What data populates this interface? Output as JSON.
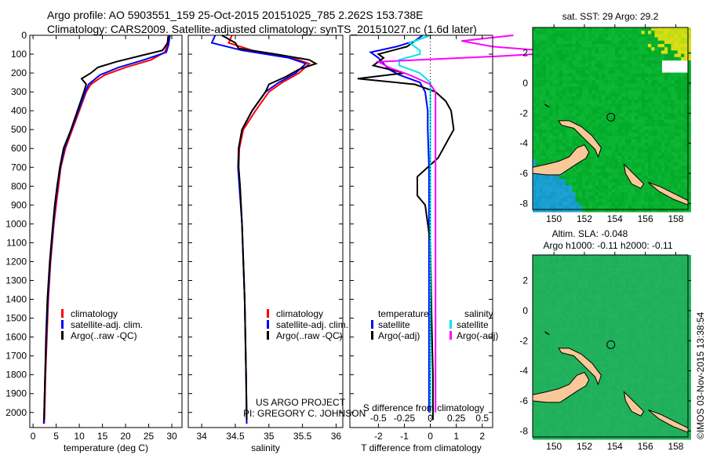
{
  "title_line1": "Argo profile: AO 5903551_159 25-Oct-2015 20151025_785 2.262S 153.738E",
  "title_line2": "Climatology: CARS2009. Satellite-adjusted climatology: synTS_20151027.nc (1.6d later)",
  "stamp": "©IMOS 03-Nov-2015 13:38:54",
  "colors": {
    "climatology": "#ff0000",
    "satellite": "#0000ff",
    "argo": "#000000",
    "sal_satellite": "#00e5ee",
    "sal_argo": "#ff00ff",
    "land": "#f8c898"
  },
  "chart_data": [
    {
      "type": "line",
      "id": "temperature",
      "xlabel": "temperature (deg C)",
      "ylabel": "",
      "xlim": [
        -0.7,
        32.2
      ],
      "ylim": [
        2080,
        0
      ],
      "xticks": [
        "0",
        "5",
        "10",
        "15",
        "20",
        "25",
        "30"
      ],
      "xtick_values": [
        0,
        5,
        10,
        15,
        20,
        25,
        30
      ],
      "yticks": [
        "0",
        "100",
        "200",
        "300",
        "400",
        "500",
        "600",
        "700",
        "800",
        "900",
        "1000",
        "1100",
        "1200",
        "1300",
        "1400",
        "1500",
        "1600",
        "1700",
        "1800",
        "1900",
        "2000"
      ],
      "legend": [
        "climatology",
        "satellite-adj. clim.",
        "Argo(..raw -QC)"
      ],
      "series": [
        {
          "name": "climatology",
          "color": "#ff0000",
          "depth": [
            0,
            50,
            90,
            130,
            170,
            210,
            260,
            300,
            400,
            500,
            600,
            700,
            800,
            900,
            1000,
            1200,
            1400,
            1600,
            1800,
            2000,
            2060
          ],
          "values": [
            29.3,
            29.0,
            28.5,
            25.5,
            20,
            15.5,
            12.5,
            11.5,
            10,
            8.5,
            7,
            6,
            5.5,
            5,
            4.5,
            3.8,
            3.3,
            3,
            2.7,
            2.5,
            2.4
          ]
        },
        {
          "name": "satellite-adj. clim.",
          "color": "#0000ff",
          "depth": [
            0,
            50,
            90,
            130,
            170,
            210,
            260,
            300,
            400,
            500,
            600,
            700,
            800,
            900,
            1000,
            1200,
            1400,
            1600,
            1800,
            2000,
            2060
          ],
          "values": [
            29.6,
            29.3,
            28.8,
            24,
            18.5,
            14.5,
            12,
            11.3,
            9.8,
            8.3,
            6.8,
            5.9,
            5.3,
            4.8,
            4.4,
            3.7,
            3.2,
            2.9,
            2.6,
            2.4,
            2.3
          ]
        },
        {
          "name": "Argo(..raw -QC)",
          "color": "#000000",
          "depth": [
            5,
            40,
            80,
            110,
            140,
            170,
            200,
            230,
            260,
            300,
            400,
            500,
            600,
            700,
            800,
            900,
            1000,
            1200,
            1400,
            1600,
            1800,
            2000,
            2040
          ],
          "values": [
            29.2,
            29.1,
            28,
            23,
            18,
            14,
            12.5,
            10.5,
            11.5,
            11,
            9.6,
            8.2,
            6.6,
            5.8,
            5.2,
            4.7,
            4.3,
            3.6,
            3.1,
            2.8,
            2.6,
            2.4,
            2.4
          ]
        }
      ]
    },
    {
      "type": "line",
      "id": "salinity",
      "xlabel": "salinity",
      "ylabel": "",
      "xlim": [
        33.8,
        36.1
      ],
      "ylim": [
        2080,
        0
      ],
      "xticks": [
        "34",
        "34.5",
        "35",
        "35.5",
        "36"
      ],
      "xtick_values": [
        34,
        34.5,
        35,
        35.5,
        36
      ],
      "legend": [
        "climatology",
        "satellite-adj. clim.",
        "Argo(..raw -QC)"
      ],
      "annotation": [
        "US ARGO PROJECT",
        "PI: GREGORY C. JOHNSON"
      ],
      "series": [
        {
          "name": "climatology",
          "color": "#ff0000",
          "depth": [
            0,
            40,
            80,
            120,
            150,
            200,
            250,
            300,
            400,
            500,
            600,
            700,
            800,
            1000,
            1400,
            1800,
            2060
          ],
          "values": [
            34.45,
            34.4,
            34.75,
            35.35,
            35.6,
            35.45,
            35.2,
            35.0,
            34.8,
            34.62,
            34.56,
            34.55,
            34.57,
            34.6,
            34.64,
            34.66,
            34.67
          ]
        },
        {
          "name": "satellite-adj. clim.",
          "color": "#0000ff",
          "depth": [
            0,
            40,
            80,
            120,
            150,
            200,
            250,
            300,
            400,
            500,
            600,
            700,
            800,
            1000,
            1400,
            1800,
            2060
          ],
          "values": [
            34.2,
            34.15,
            34.6,
            35.3,
            35.55,
            35.4,
            35.15,
            34.95,
            34.75,
            34.6,
            34.55,
            34.54,
            34.56,
            34.6,
            34.64,
            34.66,
            34.67
          ]
        },
        {
          "name": "Argo(..raw -QC)",
          "color": "#000000",
          "depth": [
            0,
            40,
            70,
            100,
            130,
            150,
            180,
            220,
            260,
            300,
            400,
            500,
            600,
            700,
            800,
            1000,
            1400,
            1800,
            2040
          ],
          "values": [
            34.3,
            34.5,
            34.55,
            35.1,
            35.6,
            35.7,
            35.45,
            35.25,
            35.0,
            34.95,
            34.75,
            34.6,
            34.55,
            34.55,
            34.57,
            34.6,
            34.64,
            34.66,
            34.67
          ]
        }
      ]
    },
    {
      "type": "line",
      "id": "difference",
      "xlabel": "T difference from climatology",
      "x2label": "S difference from climatology",
      "xlim": [
        -3.1,
        2.4
      ],
      "ylim": [
        2080,
        0
      ],
      "xticks": [
        "-2",
        "-1",
        "0",
        "1",
        "2"
      ],
      "xtick_values": [
        -2,
        -1,
        0,
        1,
        2
      ],
      "x2ticks": [
        "-0.5",
        "-0.25",
        "0",
        "0.25",
        "0.5"
      ],
      "x2tick_values": [
        -0.5,
        -0.25,
        0,
        0.25,
        0.5
      ],
      "legend_t": [
        "temperature",
        "satellite",
        "Argo(-adj)"
      ],
      "legend_s": [
        "salinity",
        "satellite",
        "Argo(-adj)"
      ],
      "series": [
        {
          "name": "T satellite",
          "color": "#0000ff",
          "depth": [
            0,
            30,
            60,
            90,
            120,
            150,
            180,
            210,
            250,
            300,
            400,
            500,
            700,
            1000,
            1500,
            2000
          ],
          "values": [
            -0.3,
            -0.6,
            -1.3,
            -2.3,
            -2.0,
            -1.8,
            -1.6,
            -1.2,
            -0.4,
            -0.2,
            -0.1,
            -0.1,
            -0.05,
            -0.05,
            -0.05,
            -0.05
          ]
        },
        {
          "name": "T Argo(-adj)",
          "color": "#000000",
          "depth": [
            5,
            30,
            60,
            100,
            120,
            160,
            200,
            230,
            260,
            300,
            350,
            400,
            500,
            550,
            650,
            750,
            850,
            900,
            1000,
            1100,
            1500,
            1800,
            2040
          ],
          "values": [
            -0.1,
            -0.6,
            -0.9,
            -2.0,
            -1.8,
            -2.2,
            -1.0,
            -2.8,
            -0.6,
            0.2,
            0.6,
            0.8,
            0.9,
            0.7,
            0.3,
            -0.5,
            -0.5,
            -0.2,
            -0.1,
            0,
            0.05,
            0.1,
            0.1
          ]
        },
        {
          "name": "S satellite",
          "color": "#00e5ee",
          "depth": [
            0,
            40,
            80,
            100,
            130,
            160,
            200,
            250,
            300,
            500,
            1000,
            2000
          ],
          "values": [
            0.0,
            -0.2,
            -0.1,
            -0.1,
            -0.3,
            -0.3,
            -0.1,
            0.0,
            0,
            0,
            0,
            0
          ]
        },
        {
          "name": "S Argo(-adj)",
          "color": "#ff00ff",
          "depth": [
            0,
            30,
            60,
            90,
            110,
            140,
            170,
            210,
            260,
            300,
            500,
            1000,
            2000
          ],
          "values": [
            0.8,
            0.3,
            0.6,
            1.3,
            0.7,
            -0.5,
            -0.4,
            -0.2,
            0,
            0.05,
            0.05,
            0.05,
            0.05
          ]
        }
      ]
    },
    {
      "type": "heatmap",
      "id": "sst_map",
      "title": "sat. SST: 29 Argo: 29.2",
      "xlim": [
        148.6,
        158.8
      ],
      "ylim": [
        -8.4,
        3.7
      ],
      "xticks": [
        "150",
        "152",
        "154",
        "156",
        "158"
      ],
      "xtick_values": [
        150,
        152,
        154,
        156,
        158
      ],
      "yticks": [
        "2",
        "0",
        "-2",
        "-4",
        "-6",
        "-8"
      ],
      "ytick_values": [
        2,
        0,
        -2,
        -4,
        -6,
        -8
      ],
      "marker": {
        "lon": 153.738,
        "lat": -2.262
      }
    },
    {
      "type": "heatmap",
      "id": "sla_map",
      "title_line1": "Altim. SLA: -0.048",
      "title_line2": "Argo h1000: -0.11 h2000: -0.11",
      "xlim": [
        148.6,
        158.8
      ],
      "ylim": [
        -8.4,
        3.7
      ],
      "xticks": [
        "150",
        "152",
        "154",
        "156",
        "158"
      ],
      "xtick_values": [
        150,
        152,
        154,
        156,
        158
      ],
      "yticks": [
        "2",
        "0",
        "-2",
        "-4",
        "-6",
        "-8"
      ],
      "ytick_values": [
        2,
        0,
        -2,
        -4,
        -6,
        -8
      ],
      "marker": {
        "lon": 153.738,
        "lat": -2.262
      }
    }
  ]
}
